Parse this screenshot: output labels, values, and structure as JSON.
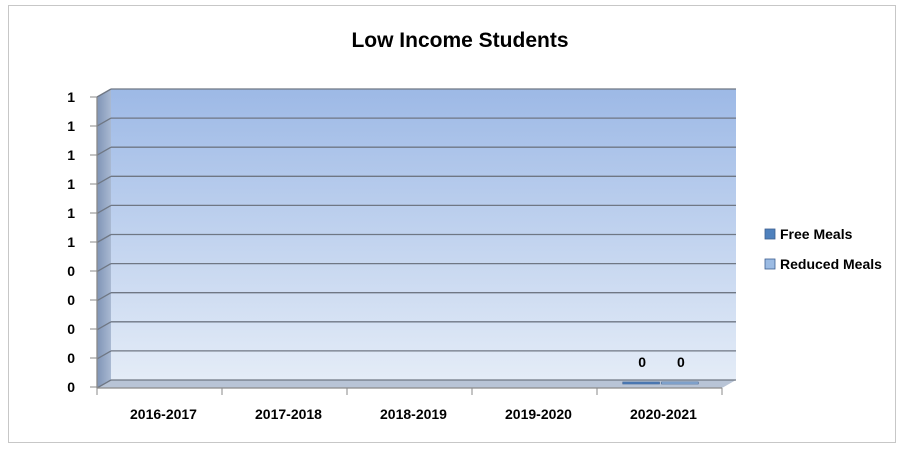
{
  "chart_data": {
    "type": "bar",
    "title": "Low Income Students",
    "categories": [
      "2016-2017",
      "2017-2018",
      "2018-2019",
      "2019-2020",
      "2020-2021"
    ],
    "series": [
      {
        "name": "Free Meals",
        "color": "#4f81bd",
        "values": [
          null,
          null,
          null,
          null,
          0
        ],
        "labels": [
          "",
          "",
          "",
          "",
          "0"
        ]
      },
      {
        "name": "Reduced Meals",
        "color": "#9bbbe3",
        "values": [
          null,
          null,
          null,
          null,
          0
        ],
        "labels": [
          "",
          "",
          "",
          "",
          "0"
        ]
      }
    ],
    "y_tick_labels": [
      "0",
      "0",
      "0",
      "0",
      "0",
      "1",
      "1",
      "1",
      "1",
      "1",
      "1"
    ],
    "ylim": [
      0,
      1
    ],
    "grid": true,
    "legend_position": "right",
    "style": "3d-clustered-column"
  }
}
